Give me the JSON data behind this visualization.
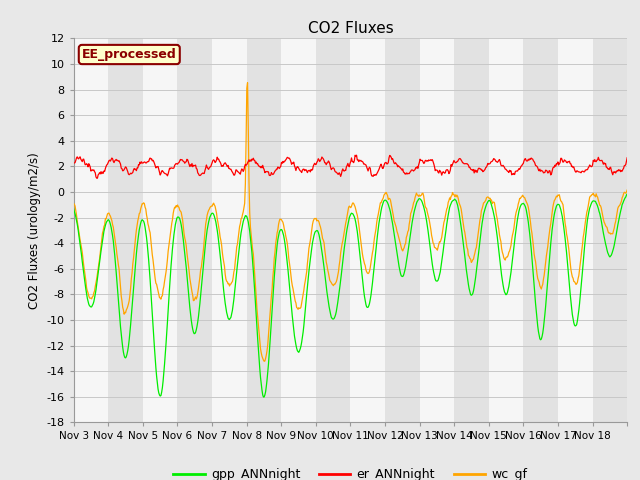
{
  "title": "CO2 Fluxes",
  "ylabel": "CO2 Fluxes (urology/m2/s)",
  "ylim": [
    -18,
    12
  ],
  "yticks": [
    -18,
    -16,
    -14,
    -12,
    -10,
    -8,
    -6,
    -4,
    -2,
    0,
    2,
    4,
    6,
    8,
    10,
    12
  ],
  "xtick_labels": [
    "Nov 3",
    "Nov 4",
    "Nov 5",
    "Nov 6",
    "Nov 7",
    "Nov 8",
    "Nov 9",
    "Nov 10",
    "Nov 11",
    "Nov 12",
    "Nov 13",
    "Nov 14",
    "Nov 15",
    "Nov 16",
    "Nov 17",
    "Nov 18"
  ],
  "label_text": "EE_processed",
  "label_color": "#8B0000",
  "label_bg": "#FFFFCC",
  "line_colors": {
    "gpp": "#00EE00",
    "er": "#FF0000",
    "wc": "#FFA500"
  },
  "legend_labels": [
    "gpp_ANNnight",
    "er_ANNnight",
    "wc_gf"
  ],
  "bg_color": "#E8E8E8",
  "plot_bg": "#EBEBEB",
  "n_days": 16,
  "pts_per_day": 48,
  "seed": 12345
}
